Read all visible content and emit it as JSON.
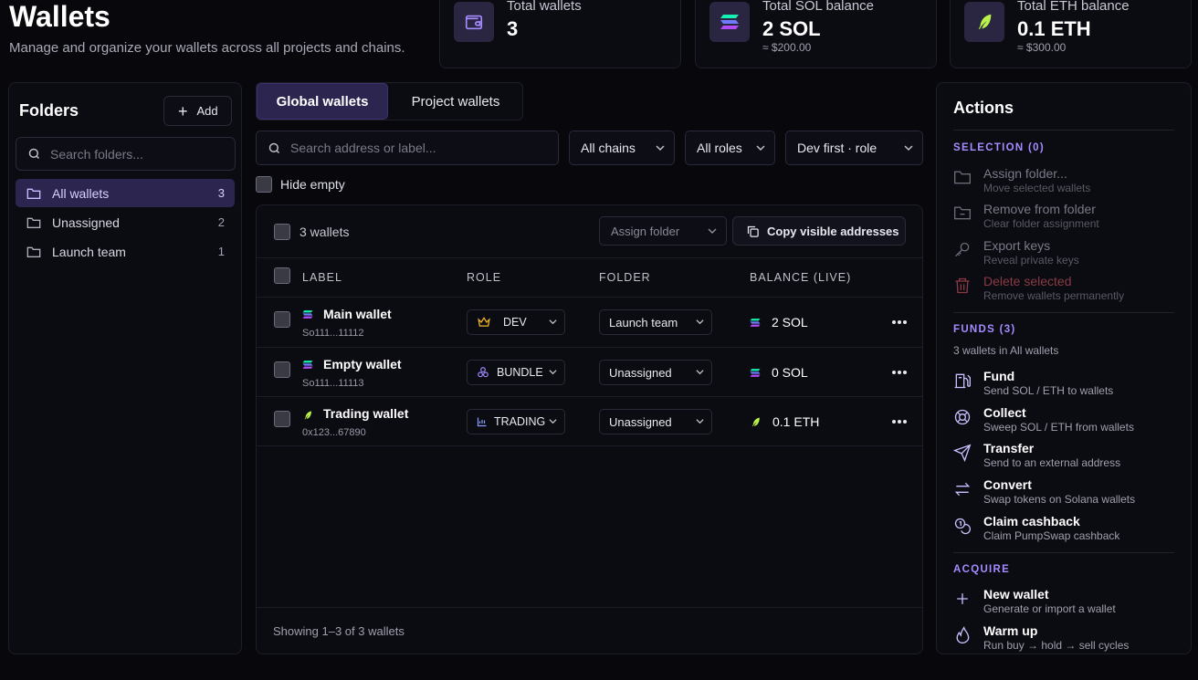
{
  "header": {
    "title": "Wallets",
    "subtitle": "Manage and organize your wallets across all projects and chains."
  },
  "stats": [
    {
      "label": "Total wallets",
      "value": "3",
      "sub": ""
    },
    {
      "label": "Total SOL balance",
      "value": "2 SOL",
      "sub": "≈ $200.00"
    },
    {
      "label": "Total ETH balance",
      "value": "0.1 ETH",
      "sub": "≈ $300.00"
    }
  ],
  "folders": {
    "title": "Folders",
    "add_label": "Add",
    "search_placeholder": "Search folders...",
    "items": [
      {
        "label": "All wallets",
        "count": "3"
      },
      {
        "label": "Unassigned",
        "count": "2"
      },
      {
        "label": "Launch team",
        "count": "1"
      }
    ]
  },
  "tabs": {
    "global": "Global wallets",
    "project": "Project wallets"
  },
  "filters": {
    "search_placeholder": "Search address or label...",
    "chains": "All chains",
    "roles": "All roles",
    "sort": "Dev first · role",
    "hide_empty": "Hide empty"
  },
  "table": {
    "count_label": "3 wallets",
    "assign_folder": "Assign folder",
    "copy_label": "Copy visible addresses",
    "columns": {
      "label": "LABEL",
      "role": "ROLE",
      "folder": "FOLDER",
      "balance": "BALANCE (LIVE)"
    },
    "rows": [
      {
        "name": "Main wallet",
        "address": "So111...11112",
        "role": "DEV",
        "folder": "Launch team",
        "balance": "2 SOL",
        "chain": "sol"
      },
      {
        "name": "Empty wallet",
        "address": "So111...11113",
        "role": "BUNDLE",
        "folder": "Unassigned",
        "balance": "0 SOL",
        "chain": "sol"
      },
      {
        "name": "Trading wallet",
        "address": "0x123...67890",
        "role": "TRADING",
        "folder": "Unassigned",
        "balance": "0.1 ETH",
        "chain": "eth"
      }
    ],
    "footer": "Showing 1–3 of 3 wallets"
  },
  "actions": {
    "title": "Actions",
    "selection_header": "SELECTION (0)",
    "selection": [
      {
        "name": "Assign folder...",
        "desc": "Move selected wallets",
        "icon": "folder-icon"
      },
      {
        "name": "Remove from folder",
        "desc": "Clear folder assignment",
        "icon": "folder-minus-icon"
      },
      {
        "name": "Export keys",
        "desc": "Reveal private keys",
        "icon": "key-icon"
      },
      {
        "name": "Delete selected",
        "desc": "Remove wallets permanently",
        "icon": "trash-icon"
      }
    ],
    "funds_header": "FUNDS (3)",
    "funds_sub": "3 wallets in All wallets",
    "funds": [
      {
        "name": "Fund",
        "desc": "Send SOL / ETH to wallets",
        "icon": "fuel-icon"
      },
      {
        "name": "Collect",
        "desc": "Sweep SOL / ETH from wallets",
        "icon": "lifebuoy-icon"
      },
      {
        "name": "Transfer",
        "desc": "Send to an external address",
        "icon": "send-icon"
      },
      {
        "name": "Convert",
        "desc": "Swap tokens on Solana wallets",
        "icon": "swap-icon"
      },
      {
        "name": "Claim cashback",
        "desc": "Claim PumpSwap cashback",
        "icon": "coins-icon"
      }
    ],
    "acquire_header": "ACQUIRE",
    "acquire": [
      {
        "name": "New wallet",
        "desc": "Generate or import a wallet",
        "icon": "plus-icon"
      },
      {
        "name": "Warm up",
        "desc": "Run buy → hold → sell cycles",
        "icon": "flame-icon"
      }
    ]
  },
  "colors": {
    "accent": "#a58cff",
    "active_bg": "#2b2550",
    "danger": "#8a3a44",
    "eth_green": "#b8f24a"
  }
}
